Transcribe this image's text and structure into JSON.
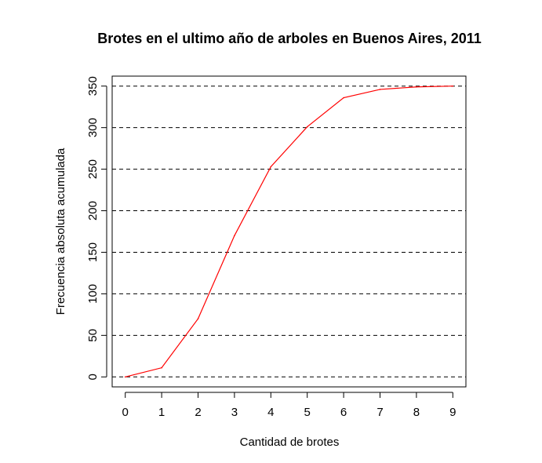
{
  "chart_data": {
    "type": "line",
    "title": "Brotes en el ultimo año de arboles en Buenos Aires, 2011",
    "xlabel": "Cantidad de brotes",
    "ylabel": "Frecuencia absoluta acumulada",
    "x": [
      0,
      1,
      2,
      3,
      4,
      5,
      6,
      7,
      8,
      9
    ],
    "series": [
      {
        "values": [
          0,
          11,
          70,
          170,
          253,
          301,
          336,
          346,
          349,
          350
        ],
        "color": "#ff0000"
      }
    ],
    "xticks": [
      0,
      1,
      2,
      3,
      4,
      5,
      6,
      7,
      8,
      9
    ],
    "yticks": [
      0,
      50,
      100,
      150,
      200,
      250,
      300,
      350
    ],
    "xlim": [
      -0.36,
      9.36
    ],
    "ylim": [
      -12,
      362
    ],
    "grid": "horizontal dashed at y ticks",
    "legend": "none"
  }
}
